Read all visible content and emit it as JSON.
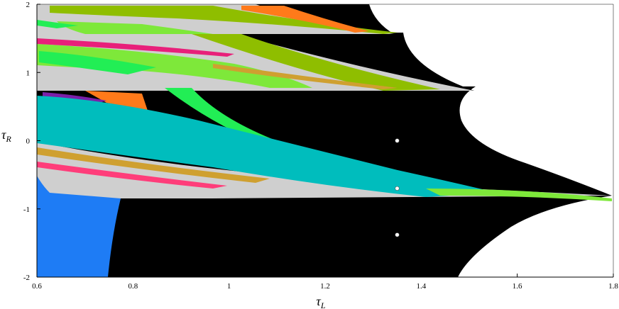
{
  "chart_data": {
    "type": "heatmap",
    "xlabel": "τ",
    "xlabel_sub": "L",
    "ylabel": "τ",
    "ylabel_sub": "R",
    "xlim": [
      0.6,
      1.8
    ],
    "ylim": [
      -2,
      2
    ],
    "x_ticks": [
      0.6,
      0.8,
      1,
      1.2,
      1.4,
      1.6,
      1.8
    ],
    "x_tick_labels": [
      "0.6",
      "0.8",
      "1",
      "1.2",
      "1.4",
      "1.6",
      "1.8"
    ],
    "y_ticks": [
      2,
      1,
      0,
      -1,
      -2
    ],
    "y_tick_labels": [
      "2",
      "1",
      "0",
      "-1",
      "-2"
    ],
    "grid": false,
    "background_color": "#000000",
    "exterior_color": "#ffffff",
    "colors": {
      "blue": "#1e7cf5",
      "cyan": "#00bdbd",
      "green": "#22ee55",
      "lime": "#7ee83a",
      "olive": "#8fbe00",
      "orange": "#ff7a1a",
      "yellow": "#c8a800",
      "gold": "#cfa030",
      "magenta": "#e8207a",
      "purple": "#7a1fa8",
      "pink": "#ff3d7a",
      "gray": "#cfcfcf"
    },
    "points": [
      {
        "x": 1.35,
        "y": 0.0
      },
      {
        "x": 1.35,
        "y": -0.7
      },
      {
        "x": 1.35,
        "y": -1.38
      }
    ]
  }
}
